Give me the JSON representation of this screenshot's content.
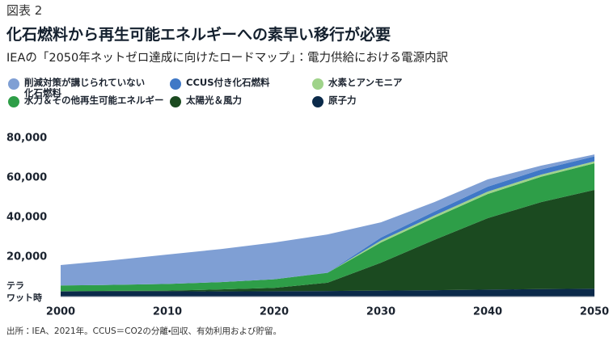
{
  "chart_data": {
    "type": "stacked-area",
    "figure_label": "図表 2",
    "title": "化石燃料から再生可能エネルギーへの素早い移行が必要",
    "subtitle": "IEAの「2050年ネットゼロ達成に向けたロードマップ」：電力供給における電源内訳",
    "ylabel": [
      "テラ",
      "ワット時"
    ],
    "source": "出所：IEA、2021年。CCUS＝CO2の分離・回収、有効利用および貯留。",
    "x": [
      2000,
      2005,
      2010,
      2015,
      2020,
      2025,
      2030,
      2035,
      2040,
      2045,
      2050
    ],
    "xlim": [
      2000,
      2050
    ],
    "xticks": [
      2000,
      2010,
      2020,
      2030,
      2040,
      2050
    ],
    "ylim": [
      0,
      80000
    ],
    "yticks": [
      {
        "value": 20000,
        "label": "20,000"
      },
      {
        "value": 40000,
        "label": "40,000"
      },
      {
        "value": 60000,
        "label": "60,000"
      },
      {
        "value": 80000,
        "label": "80,000"
      }
    ],
    "grid": false,
    "series": [
      {
        "name": "削減対策が講じられていない\n化石燃料",
        "color": "#7f9fd4",
        "values": [
          10300,
          12500,
          14800,
          16700,
          18600,
          19300,
          7700,
          4800,
          3700,
          1900,
          1000
        ]
      },
      {
        "name": "CCUS付き化石燃料",
        "color": "#3f78c6",
        "values": [
          0,
          0,
          0,
          0,
          0,
          100,
          1500,
          2000,
          2500,
          2600,
          2500
        ]
      },
      {
        "name": "水素とアンモニア",
        "color": "#9fd38a",
        "values": [
          0,
          0,
          0,
          0,
          0,
          0,
          1000,
          1100,
          1200,
          1100,
          1000
        ]
      },
      {
        "name": "水力＆その他再生可能エネルギー",
        "color": "#2e9e48",
        "values": [
          2900,
          3000,
          3400,
          3700,
          4300,
          5000,
          10200,
          11200,
          12200,
          12800,
          13400
        ]
      },
      {
        "name": "太陽光＆風力",
        "color": "#1b4a20",
        "values": [
          100,
          200,
          300,
          1000,
          1700,
          4200,
          14100,
          25400,
          36100,
          43900,
          49900
        ]
      },
      {
        "name": "原子力",
        "color": "#0b2a4a",
        "values": [
          2600,
          2700,
          2700,
          2600,
          2700,
          2800,
          3000,
          3200,
          3500,
          3800,
          4000
        ]
      }
    ]
  }
}
